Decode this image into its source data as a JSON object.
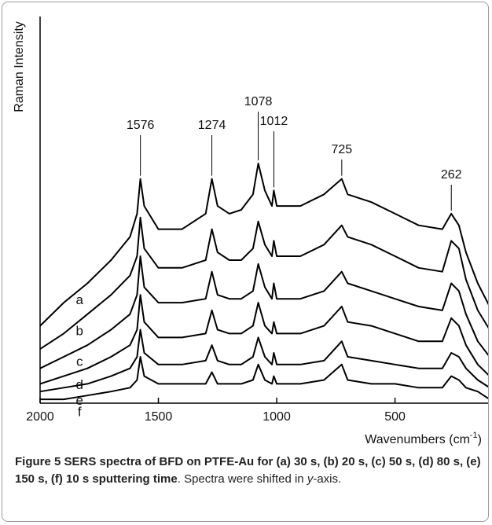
{
  "chart_data": {
    "type": "line",
    "ylabel": "Raman Intensity",
    "xlabel": {
      "text": "Wavenumbers (cm",
      "sup": "-1",
      "close": ")"
    },
    "x": [
      2000,
      1900,
      1800,
      1700,
      1620,
      1590,
      1576,
      1560,
      1500,
      1400,
      1300,
      1274,
      1250,
      1200,
      1150,
      1100,
      1078,
      1050,
      1020,
      1012,
      1000,
      950,
      900,
      800,
      725,
      700,
      600,
      500,
      400,
      300,
      262,
      230,
      200,
      150,
      100
    ],
    "series": [
      {
        "name": "a",
        "color": "#000000",
        "values": [
          20,
          26,
          31,
          37,
          43,
          49,
          58,
          51,
          45,
          45,
          49,
          58,
          51,
          49,
          50,
          54,
          62,
          55,
          51,
          55,
          51,
          51,
          51,
          54,
          58,
          54,
          52,
          49,
          46,
          45,
          49,
          46,
          39,
          31,
          25
        ]
      },
      {
        "name": "b",
        "color": "#000000",
        "values": [
          14,
          18,
          23,
          28,
          33,
          38,
          48,
          40,
          35,
          35,
          37,
          45,
          39,
          37,
          37,
          40,
          47,
          41,
          38,
          42,
          38,
          38,
          38,
          41,
          46,
          43,
          41,
          38,
          35,
          34,
          42,
          40,
          32,
          24,
          19
        ]
      },
      {
        "name": "c",
        "color": "#000000",
        "values": [
          9,
          12,
          15,
          19,
          23,
          28,
          38,
          30,
          26,
          26,
          27,
          34,
          28,
          27,
          27,
          29,
          36,
          30,
          27,
          31,
          27,
          27,
          27,
          29,
          34,
          31,
          29,
          27,
          25,
          24,
          31,
          29,
          23,
          16,
          12
        ]
      },
      {
        "name": "d",
        "color": "#000000",
        "values": [
          5,
          7,
          9,
          12,
          15,
          19,
          28,
          21,
          17,
          17,
          18,
          24,
          19,
          18,
          18,
          20,
          26,
          20,
          18,
          21,
          18,
          18,
          18,
          20,
          25,
          21,
          20,
          18,
          16,
          16,
          22,
          20,
          15,
          10,
          7
        ]
      },
      {
        "name": "e",
        "color": "#000000",
        "values": [
          3,
          4,
          5,
          7,
          9,
          12,
          19,
          13,
          10,
          10,
          11,
          15,
          11,
          10,
          10,
          12,
          17,
          12,
          10,
          13,
          10,
          10,
          10,
          11,
          16,
          12,
          11,
          10,
          9,
          9,
          13,
          12,
          9,
          6,
          4
        ]
      },
      {
        "name": "f",
        "color": "#000000",
        "values": [
          1,
          1,
          2,
          3,
          4,
          6,
          12,
          7,
          5,
          5,
          5,
          8,
          5,
          5,
          5,
          6,
          10,
          6,
          5,
          7,
          5,
          5,
          5,
          6,
          10,
          6,
          5,
          5,
          4,
          4,
          7,
          6,
          4,
          3,
          1
        ]
      }
    ],
    "annotations": [
      {
        "text": "1576",
        "x": 1576
      },
      {
        "text": "1274",
        "x": 1274
      },
      {
        "text": "1078",
        "x": 1078
      },
      {
        "text": "1012",
        "x": 1012
      },
      {
        "text": "725",
        "x": 725
      },
      {
        "text": "262",
        "x": 262
      }
    ],
    "xlim": [
      2000,
      100
    ],
    "ylim": [
      0,
      100
    ],
    "xticks": [
      2000,
      1500,
      1000,
      500
    ]
  },
  "caption": {
    "bold": "Figure 5 SERS spectra of BFD on PTFE-Au for (a) 30 s, (b) 20 s, (c) 50 s, (d) 80 s, (e) 150 s, (f) 10 s sputtering time",
    "text1": ". Spectra were shifted in ",
    "italic": "y",
    "text2": "-axis."
  }
}
